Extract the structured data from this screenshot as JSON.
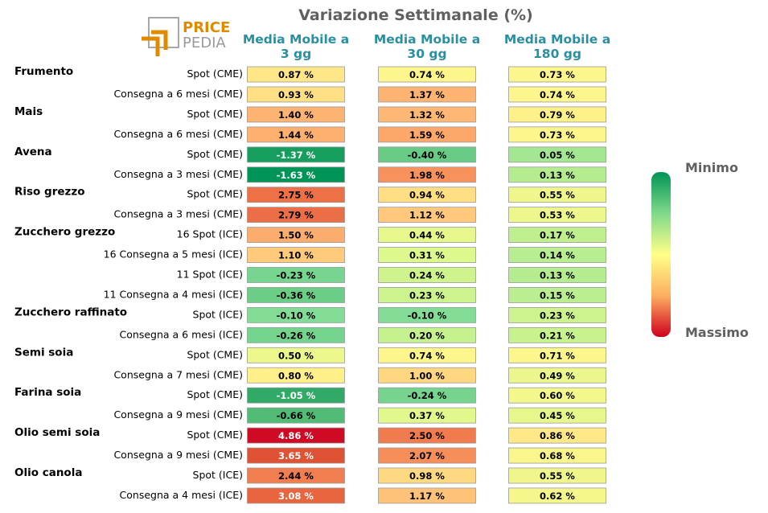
{
  "chart_data": {
    "type": "table",
    "title": "Variazione Settimanale (%)",
    "columns": [
      "Media Mobile a\n3 gg",
      "Media Mobile a\n30 gg",
      "Media Mobile a\n180 gg"
    ],
    "logo": {
      "top": "PRICE",
      "bottom": "PEDIA"
    },
    "legend": {
      "min_label": "Minimo",
      "max_label": "Massimo"
    },
    "groups": [
      {
        "name": "Frumento",
        "rows": [
          {
            "label": "Spot (CME)",
            "values": [
              0.87,
              0.74,
              0.73
            ]
          },
          {
            "label": "Consegna a 6 mesi (CME)",
            "values": [
              0.93,
              1.37,
              0.74
            ]
          }
        ]
      },
      {
        "name": "Mais",
        "rows": [
          {
            "label": "Spot (CME)",
            "values": [
              1.4,
              1.32,
              0.79
            ]
          },
          {
            "label": "Consegna a 6 mesi (CME)",
            "values": [
              1.44,
              1.59,
              0.73
            ]
          }
        ]
      },
      {
        "name": "Avena",
        "rows": [
          {
            "label": "Spot (CME)",
            "values": [
              -1.37,
              -0.4,
              0.05
            ]
          },
          {
            "label": "Consegna a 3 mesi (CME)",
            "values": [
              -1.63,
              1.98,
              0.13
            ]
          }
        ]
      },
      {
        "name": "Riso grezzo",
        "rows": [
          {
            "label": "Spot (CME)",
            "values": [
              2.75,
              0.94,
              0.55
            ]
          },
          {
            "label": "Consegna a 3 mesi (CME)",
            "values": [
              2.79,
              1.12,
              0.53
            ]
          }
        ]
      },
      {
        "name": "Zucchero grezzo",
        "rows": [
          {
            "label": "16 Spot (ICE)",
            "values": [
              1.5,
              0.44,
              0.17
            ]
          },
          {
            "label": "16 Consegna a 5 mesi (ICE)",
            "values": [
              1.1,
              0.31,
              0.14
            ]
          },
          {
            "label": "11 Spot (ICE)",
            "values": [
              -0.23,
              0.24,
              0.13
            ]
          },
          {
            "label": "11 Consegna a 4 mesi (ICE)",
            "values": [
              -0.36,
              0.23,
              0.15
            ]
          }
        ]
      },
      {
        "name": "Zucchero raffinato",
        "rows": [
          {
            "label": "Spot (ICE)",
            "values": [
              -0.1,
              -0.1,
              0.23
            ]
          },
          {
            "label": "Consegna a 6 mesi (ICE)",
            "values": [
              -0.26,
              0.2,
              0.21
            ]
          }
        ]
      },
      {
        "name": "Semi soia",
        "rows": [
          {
            "label": "Spot (CME)",
            "values": [
              0.5,
              0.74,
              0.71
            ]
          },
          {
            "label": "Consegna a 7 mesi (CME)",
            "values": [
              0.8,
              1.0,
              0.49
            ]
          }
        ]
      },
      {
        "name": "Farina soia",
        "rows": [
          {
            "label": "Spot (CME)",
            "values": [
              -1.05,
              -0.24,
              0.6
            ]
          },
          {
            "label": "Consegna a 9 mesi (CME)",
            "values": [
              -0.66,
              0.37,
              0.45
            ]
          }
        ]
      },
      {
        "name": "Olio semi soia",
        "rows": [
          {
            "label": "Spot (CME)",
            "values": [
              4.86,
              2.5,
              0.86
            ]
          },
          {
            "label": "Consegna a 9 mesi (CME)",
            "values": [
              3.65,
              2.07,
              0.68
            ]
          }
        ]
      },
      {
        "name": "Olio canola",
        "rows": [
          {
            "label": "Spot (ICE)",
            "values": [
              2.44,
              0.98,
              0.55
            ]
          },
          {
            "label": "Consegna a 4 mesi (ICE)",
            "values": [
              3.08,
              1.17,
              0.62
            ]
          }
        ]
      }
    ]
  },
  "colors": {
    "scale": [
      "#1a9850",
      "#66bd63",
      "#a6d96a",
      "#d9ef8b",
      "#ffff8c",
      "#fee08b",
      "#fdae61",
      "#f46d43",
      "#d73027",
      "#c8001e"
    ],
    "header": "#2a8fa0",
    "logo_orange": "#e08a00",
    "logo_gray": "#9a9a9a"
  }
}
